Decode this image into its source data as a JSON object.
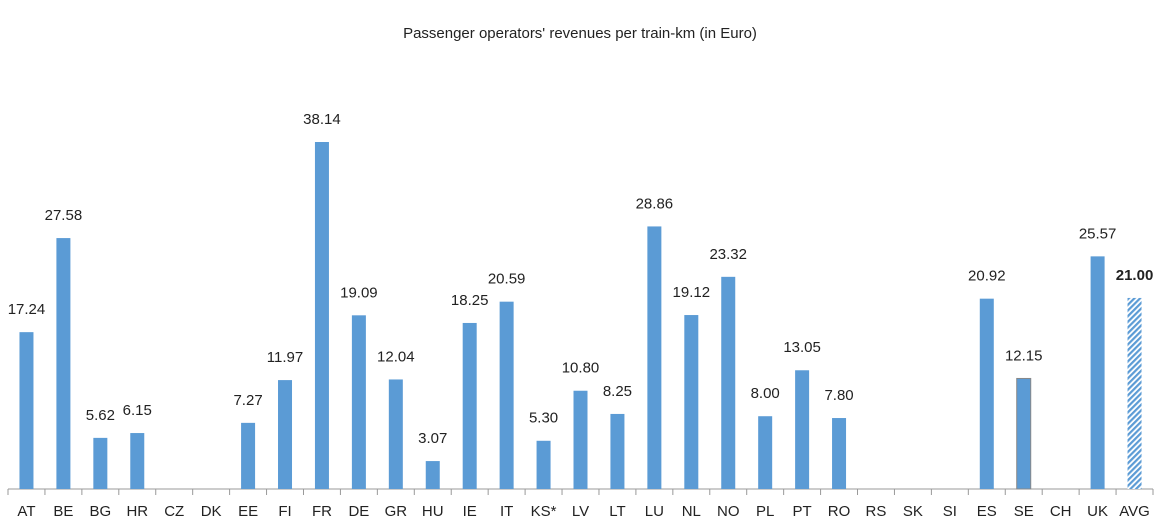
{
  "chart_data": {
    "type": "bar",
    "title": "Passenger operators' revenues per train-km (in Euro)",
    "categories": [
      "AT",
      "BE",
      "BG",
      "HR",
      "CZ",
      "DK",
      "EE",
      "FI",
      "FR",
      "DE",
      "GR",
      "HU",
      "IE",
      "IT",
      "KS*",
      "LV",
      "LT",
      "LU",
      "NL",
      "NO",
      "PL",
      "PT",
      "RO",
      "RS",
      "SK",
      "SI",
      "ES",
      "SE",
      "CH",
      "UK",
      "AVG"
    ],
    "values": [
      17.24,
      27.58,
      5.62,
      6.15,
      null,
      null,
      7.27,
      11.97,
      38.14,
      19.09,
      12.04,
      3.07,
      18.25,
      20.59,
      5.3,
      10.8,
      8.25,
      28.86,
      19.12,
      23.32,
      8,
      13.05,
      7.8,
      null,
      null,
      null,
      20.92,
      12.15,
      null,
      25.57,
      21
    ],
    "value_labels": [
      "17.24",
      "27.58",
      "5.62",
      "6.15",
      null,
      null,
      "7.27",
      "11.97",
      "38.14",
      "19.09",
      "12.04",
      "3.07",
      "18.25",
      "20.59",
      "5.30",
      "10.80",
      "8.25",
      "28.86",
      "19.12",
      "23.32",
      "8.00",
      "13.05",
      "7.80",
      null,
      null,
      null,
      "20.92",
      "12.15",
      null,
      "25.57",
      "21.00"
    ],
    "color": "#5b9bd5"
  }
}
